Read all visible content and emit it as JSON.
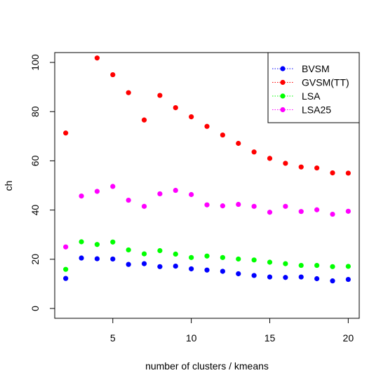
{
  "chart_data": {
    "type": "scatter",
    "title": "",
    "xlabel": "number of clusters / kmeans",
    "ylabel": "ch",
    "xlim": [
      1.3,
      20.7
    ],
    "ylim": [
      -4,
      104
    ],
    "xticks": [
      5,
      10,
      15,
      20
    ],
    "yticks": [
      0,
      20,
      40,
      60,
      80,
      100
    ],
    "grid": false,
    "legend_position": "top-right",
    "x": [
      2,
      3,
      4,
      5,
      6,
      7,
      8,
      9,
      10,
      11,
      12,
      13,
      14,
      15,
      16,
      17,
      18,
      19,
      20
    ],
    "series": [
      {
        "name": "BVSM",
        "color": "#0000ff",
        "values": [
          12.2,
          20.5,
          20.2,
          20.1,
          17.9,
          18.2,
          17.0,
          17.2,
          16.1,
          15.6,
          15.1,
          14.1,
          13.4,
          12.8,
          12.6,
          12.8,
          12.1,
          11.2,
          11.8
        ]
      },
      {
        "name": "GVSM(TT)",
        "color": "#ff0000",
        "values": [
          71.3,
          null,
          101.8,
          95.0,
          87.7,
          76.6,
          86.6,
          81.6,
          77.9,
          74.0,
          70.5,
          67.1,
          63.6,
          61.0,
          59.0,
          57.5,
          57.1,
          55.1,
          55.0
        ]
      },
      {
        "name": "LSA",
        "color": "#00ff00",
        "values": [
          15.9,
          27.1,
          26.0,
          27.0,
          23.8,
          22.2,
          23.5,
          22.1,
          20.7,
          21.3,
          20.7,
          20.1,
          19.7,
          18.8,
          18.2,
          17.5,
          17.5,
          17.0,
          17.1
        ]
      },
      {
        "name": "LSA25",
        "color": "#ff00ff",
        "values": [
          25.0,
          45.7,
          47.6,
          49.6,
          44.0,
          41.5,
          46.6,
          48.0,
          46.3,
          42.1,
          41.7,
          42.3,
          41.5,
          39.1,
          41.5,
          39.4,
          40.1,
          38.3,
          39.5
        ]
      }
    ]
  }
}
